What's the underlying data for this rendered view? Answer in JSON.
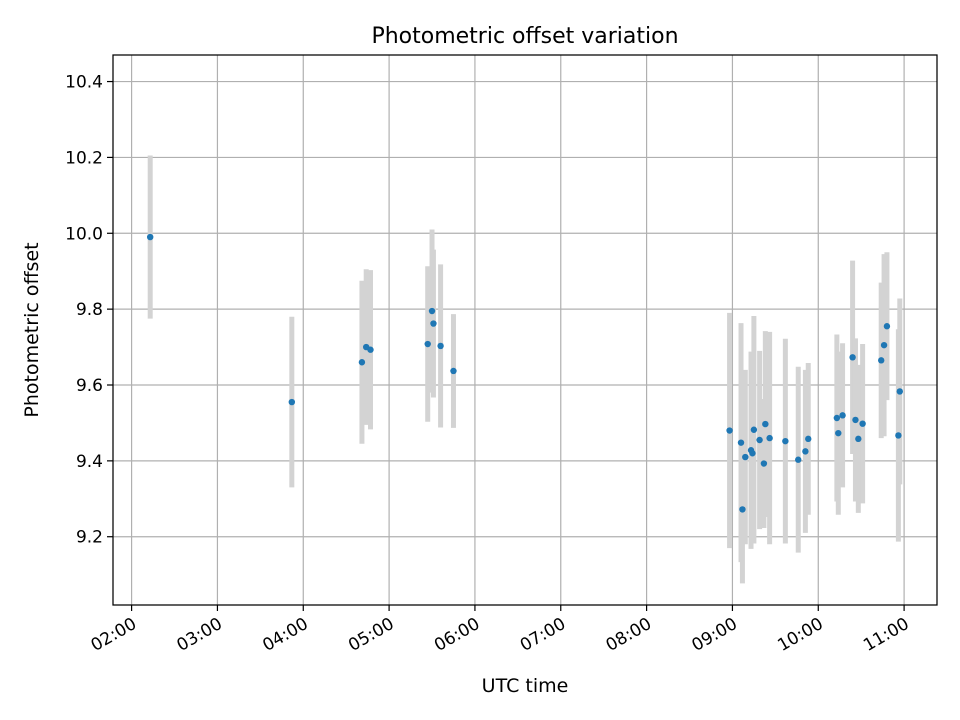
{
  "chart_data": {
    "type": "scatter",
    "title": "Photometric offset variation",
    "xlabel": "UTC time",
    "ylabel": "Photometric offset",
    "x_ticks": [
      "02:00",
      "03:00",
      "04:00",
      "05:00",
      "06:00",
      "07:00",
      "08:00",
      "09:00",
      "10:00",
      "11:00"
    ],
    "y_ticks": [
      "9.2",
      "9.4",
      "9.6",
      "9.8",
      "10.0",
      "10.2",
      "10.4"
    ],
    "xlim": [
      "01:47",
      "11:23"
    ],
    "ylim": [
      9.02,
      10.47
    ],
    "grid": true,
    "colors": {
      "points": "#1f77b4",
      "errorbars": "#d3d3d3",
      "grid": "#b0b0b0"
    },
    "points": [
      {
        "time": "02:13",
        "y": 9.99,
        "err": 0.215
      },
      {
        "time": "03:52",
        "y": 9.555,
        "err": 0.225
      },
      {
        "time": "04:41",
        "y": 9.66,
        "err": 0.215
      },
      {
        "time": "04:44",
        "y": 9.7,
        "err": 0.205
      },
      {
        "time": "04:47",
        "y": 9.693,
        "err": 0.21
      },
      {
        "time": "05:27",
        "y": 9.708,
        "err": 0.205
      },
      {
        "time": "05:30",
        "y": 9.795,
        "err": 0.215
      },
      {
        "time": "05:31",
        "y": 9.762,
        "err": 0.195
      },
      {
        "time": "05:36",
        "y": 9.703,
        "err": 0.215
      },
      {
        "time": "05:45",
        "y": 9.637,
        "err": 0.15
      },
      {
        "time": "08:58",
        "y": 9.48,
        "err": 0.31
      },
      {
        "time": "09:06",
        "y": 9.448,
        "err": 0.315
      },
      {
        "time": "09:07",
        "y": 9.272,
        "err": 0.195
      },
      {
        "time": "09:09",
        "y": 9.41,
        "err": 0.23
      },
      {
        "time": "09:13",
        "y": 9.428,
        "err": 0.26
      },
      {
        "time": "09:14",
        "y": 9.42,
        "err": 0.22
      },
      {
        "time": "09:15",
        "y": 9.482,
        "err": 0.3
      },
      {
        "time": "09:19",
        "y": 9.455,
        "err": 0.235
      },
      {
        "time": "09:22",
        "y": 9.393,
        "err": 0.17
      },
      {
        "time": "09:23",
        "y": 9.497,
        "err": 0.245
      },
      {
        "time": "09:26",
        "y": 9.46,
        "err": 0.28
      },
      {
        "time": "09:37",
        "y": 9.452,
        "err": 0.27
      },
      {
        "time": "09:46",
        "y": 9.403,
        "err": 0.245
      },
      {
        "time": "09:51",
        "y": 9.425,
        "err": 0.215
      },
      {
        "time": "09:53",
        "y": 9.458,
        "err": 0.2
      },
      {
        "time": "10:13",
        "y": 9.513,
        "err": 0.22
      },
      {
        "time": "10:14",
        "y": 9.473,
        "err": 0.215
      },
      {
        "time": "10:17",
        "y": 9.52,
        "err": 0.19
      },
      {
        "time": "10:24",
        "y": 9.673,
        "err": 0.255
      },
      {
        "time": "10:26",
        "y": 9.508,
        "err": 0.215
      },
      {
        "time": "10:28",
        "y": 9.458,
        "err": 0.195
      },
      {
        "time": "10:31",
        "y": 9.498,
        "err": 0.21
      },
      {
        "time": "10:44",
        "y": 9.665,
        "err": 0.205
      },
      {
        "time": "10:46",
        "y": 9.705,
        "err": 0.24
      },
      {
        "time": "10:48",
        "y": 9.755,
        "err": 0.195
      },
      {
        "time": "10:56",
        "y": 9.467,
        "err": 0.28
      },
      {
        "time": "10:57",
        "y": 9.583,
        "err": 0.245
      }
    ]
  }
}
